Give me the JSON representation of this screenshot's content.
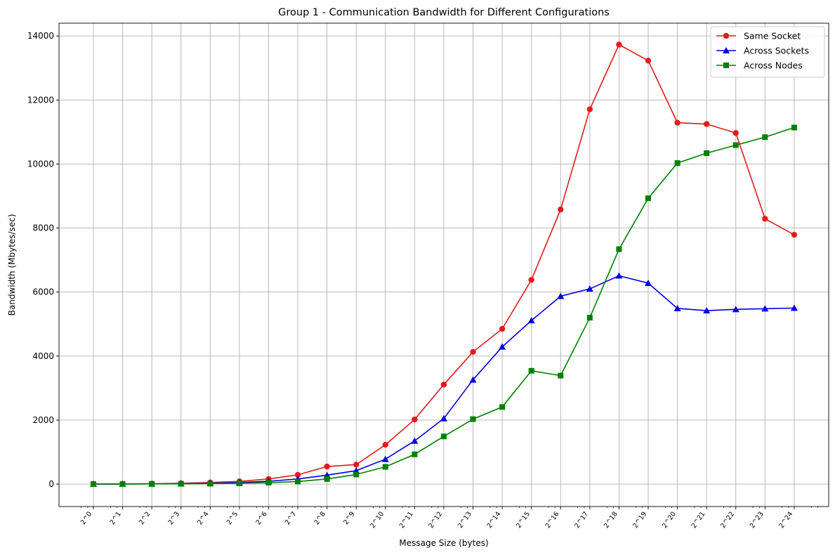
{
  "chart_data": {
    "type": "line",
    "title": "Group 1 - Communication Bandwidth for Different Configurations",
    "xlabel": "Message Size (bytes)",
    "ylabel": "Bandwidth (Mbytes/sec)",
    "x_scale": "log2",
    "x": [
      1,
      2,
      4,
      8,
      16,
      32,
      64,
      128,
      256,
      512,
      1024,
      2048,
      4096,
      8192,
      16384,
      32768,
      65536,
      131072,
      262144,
      524288,
      1048576,
      2097152,
      4194304,
      8388608,
      16777216
    ],
    "x_tick_labels": [
      "2^0",
      "2^1",
      "2^2",
      "2^3",
      "2^4",
      "2^5",
      "2^6",
      "2^7",
      "2^8",
      "2^9",
      "2^10",
      "2^11",
      "2^12",
      "2^13",
      "2^14",
      "2^15",
      "2^16",
      "2^17",
      "2^18",
      "2^19",
      "2^20",
      "2^21",
      "2^22",
      "2^23",
      "2^24"
    ],
    "ylim": [
      -700,
      14400
    ],
    "y_ticks": [
      0,
      2000,
      4000,
      6000,
      8000,
      10000,
      12000,
      14000
    ],
    "grid": true,
    "legend_position": "top-right",
    "series": [
      {
        "name": "Same Socket",
        "color": "#e41a1c",
        "marker": "circle",
        "values": [
          3,
          6,
          12,
          25,
          50,
          85,
          160,
          290,
          550,
          610,
          1230,
          2020,
          3110,
          4130,
          4850,
          6380,
          8580,
          11710,
          13730,
          13230,
          11290,
          11250,
          10970,
          8290,
          7790
        ]
      },
      {
        "name": "Across Sockets",
        "color": "#0000e0",
        "marker": "triangle",
        "values": [
          2,
          4,
          8,
          15,
          30,
          50,
          90,
          160,
          280,
          420,
          780,
          1350,
          2050,
          3260,
          4290,
          5110,
          5870,
          6100,
          6510,
          6280,
          5490,
          5420,
          5460,
          5480,
          5500
        ]
      },
      {
        "name": "Across Nodes",
        "color": "#008000",
        "marker": "square",
        "values": [
          1,
          3,
          6,
          10,
          15,
          25,
          45,
          80,
          160,
          300,
          540,
          930,
          1490,
          2030,
          2410,
          3540,
          3390,
          5200,
          7340,
          8930,
          10030,
          10340,
          10590,
          10840,
          11140
        ]
      }
    ]
  }
}
